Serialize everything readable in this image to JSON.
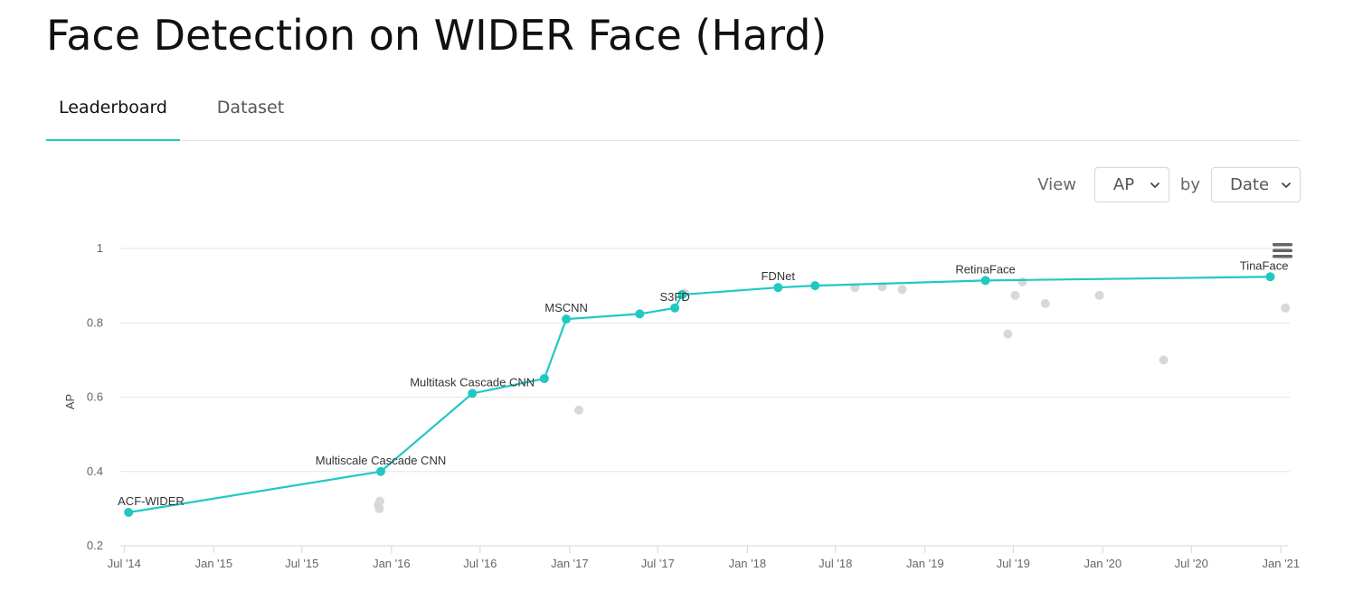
{
  "page": {
    "title": "Face Detection on WIDER Face (Hard)"
  },
  "tabs": [
    {
      "label": "Leaderboard",
      "active": true
    },
    {
      "label": "Dataset",
      "active": false
    }
  ],
  "controls": {
    "view_label": "View",
    "metric_value": "AP",
    "by_label": "by",
    "by_value": "Date"
  },
  "chart_menu": {
    "icon": "hamburger-menu-icon"
  },
  "colors": {
    "accent": "#21c8c2",
    "other_points": "#d8d8d8",
    "grid": "#e6e6e6",
    "axis": "#cfd6e6"
  },
  "chart_data": {
    "type": "scatter",
    "title": "",
    "xlabel": "",
    "ylabel": "AP",
    "ylim": [
      0.2,
      1.0
    ],
    "xlim": [
      "2014-06-23",
      "2021-01-19"
    ],
    "grid": true,
    "y_ticks": [
      "0.2",
      "0.4",
      "0.6",
      "0.8",
      "1"
    ],
    "x_ticks": [
      {
        "date": "2014-07-01",
        "label": "Jul '14"
      },
      {
        "date": "2015-01-01",
        "label": "Jan '15"
      },
      {
        "date": "2015-07-01",
        "label": "Jul '15"
      },
      {
        "date": "2016-01-01",
        "label": "Jan '16"
      },
      {
        "date": "2016-07-01",
        "label": "Jul '16"
      },
      {
        "date": "2017-01-01",
        "label": "Jan '17"
      },
      {
        "date": "2017-07-01",
        "label": "Jul '17"
      },
      {
        "date": "2018-01-01",
        "label": "Jan '18"
      },
      {
        "date": "2018-07-01",
        "label": "Jul '18"
      },
      {
        "date": "2019-01-01",
        "label": "Jan '19"
      },
      {
        "date": "2019-07-01",
        "label": "Jul '19"
      },
      {
        "date": "2020-01-01",
        "label": "Jan '20"
      },
      {
        "date": "2020-07-01",
        "label": "Jul '20"
      },
      {
        "date": "2021-01-01",
        "label": "Jan '21"
      }
    ],
    "state_of_the_art": [
      {
        "date": "2014-07-10",
        "y": 0.29,
        "label": "ACF-WIDER"
      },
      {
        "date": "2015-12-10",
        "y": 0.4,
        "label": "Multiscale Cascade CNN"
      },
      {
        "date": "2016-06-15",
        "y": 0.61,
        "label": "Multitask Cascade CNN"
      },
      {
        "date": "2016-11-10",
        "y": 0.65,
        "label": ""
      },
      {
        "date": "2016-12-25",
        "y": 0.81,
        "label": "MSCNN"
      },
      {
        "date": "2017-05-25",
        "y": 0.824,
        "label": ""
      },
      {
        "date": "2017-08-05",
        "y": 0.84,
        "label": "S3FD"
      },
      {
        "date": "2017-08-20",
        "y": 0.876,
        "label": ""
      },
      {
        "date": "2018-03-05",
        "y": 0.895,
        "label": "FDNet"
      },
      {
        "date": "2018-05-20",
        "y": 0.9,
        "label": ""
      },
      {
        "date": "2019-05-05",
        "y": 0.914,
        "label": "RetinaFace"
      },
      {
        "date": "2020-12-10",
        "y": 0.924,
        "label": "TinaFace"
      }
    ],
    "other_results": [
      {
        "date": "2015-12-05",
        "y": 0.31
      },
      {
        "date": "2015-12-07",
        "y": 0.3
      },
      {
        "date": "2015-12-08",
        "y": 0.32
      },
      {
        "date": "2017-01-20",
        "y": 0.565
      },
      {
        "date": "2017-08-25",
        "y": 0.88
      },
      {
        "date": "2018-08-10",
        "y": 0.895
      },
      {
        "date": "2018-10-05",
        "y": 0.897
      },
      {
        "date": "2018-11-15",
        "y": 0.89
      },
      {
        "date": "2019-06-20",
        "y": 0.77
      },
      {
        "date": "2019-07-05",
        "y": 0.874
      },
      {
        "date": "2019-07-20",
        "y": 0.91
      },
      {
        "date": "2019-09-05",
        "y": 0.852
      },
      {
        "date": "2019-12-25",
        "y": 0.874
      },
      {
        "date": "2020-05-05",
        "y": 0.7
      },
      {
        "date": "2021-01-10",
        "y": 0.84
      }
    ]
  }
}
